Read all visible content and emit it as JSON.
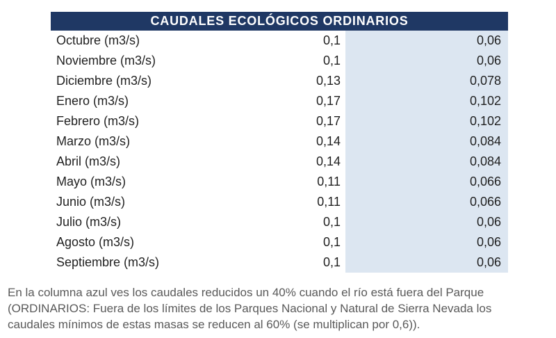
{
  "table": {
    "title": "CAUDALES ECOLÓGICOS ORDINARIOS",
    "unit_suffix": "(m3/s)",
    "highlight_color": "#dce6f1",
    "header_color": "#1f3864",
    "rows": [
      {
        "month": "Octubre (m3/s)",
        "normal": "0,1",
        "reduced": "0,06"
      },
      {
        "month": "Noviembre (m3/s)",
        "normal": "0,1",
        "reduced": "0,06"
      },
      {
        "month": "Diciembre (m3/s)",
        "normal": "0,13",
        "reduced": "0,078"
      },
      {
        "month": "Enero (m3/s)",
        "normal": "0,17",
        "reduced": "0,102"
      },
      {
        "month": "Febrero (m3/s)",
        "normal": "0,17",
        "reduced": "0,102"
      },
      {
        "month": "Marzo (m3/s)",
        "normal": "0,14",
        "reduced": "0,084"
      },
      {
        "month": "Abril (m3/s)",
        "normal": "0,14",
        "reduced": "0,084"
      },
      {
        "month": "Mayo (m3/s)",
        "normal": "0,11",
        "reduced": "0,066"
      },
      {
        "month": "Junio (m3/s)",
        "normal": "0,11",
        "reduced": "0,066"
      },
      {
        "month": "Julio (m3/s)",
        "normal": "0,1",
        "reduced": "0,06"
      },
      {
        "month": "Agosto (m3/s)",
        "normal": "0,1",
        "reduced": "0,06"
      },
      {
        "month": "Septiembre (m3/s)",
        "normal": "0,1",
        "reduced": "0,06"
      }
    ]
  },
  "footnote": {
    "lines": [
      "En la columna azul ves los caudales reducidos un 40% cuando el río está fuera del Parque",
      "(ORDINARIOS: Fuera de los límites de los Parques Nacional y Natural de Sierra Nevada los",
      "caudales mínimos de estas masas se reducen al 60% (se multiplican por 0,6))."
    ]
  },
  "chart_data": {
    "type": "table",
    "title": "CAUDALES ECOLÓGICOS ORDINARIOS",
    "unit": "m3/s",
    "categories": [
      "Octubre",
      "Noviembre",
      "Diciembre",
      "Enero",
      "Febrero",
      "Marzo",
      "Abril",
      "Mayo",
      "Junio",
      "Julio",
      "Agosto",
      "Septiembre"
    ],
    "series": [
      {
        "name": "Caudales ecológicos ordinarios (m3/s)",
        "values": [
          0.1,
          0.1,
          0.13,
          0.17,
          0.17,
          0.14,
          0.14,
          0.11,
          0.11,
          0.1,
          0.1,
          0.1
        ]
      },
      {
        "name": "Caudales reducidos un 40% - columna azul (m3/s)",
        "values": [
          0.06,
          0.06,
          0.078,
          0.102,
          0.102,
          0.084,
          0.084,
          0.066,
          0.066,
          0.06,
          0.06,
          0.06
        ]
      }
    ],
    "annotation": "En la columna azul ves los caudales reducidos un 40% cuando el río está fuera del Parque (ORDINARIOS: Fuera de los límites de los Parques Nacional y Natural de Sierra Nevada los caudales mínimos de estas masas se reducen al 60% (se multiplican por 0,6))."
  }
}
